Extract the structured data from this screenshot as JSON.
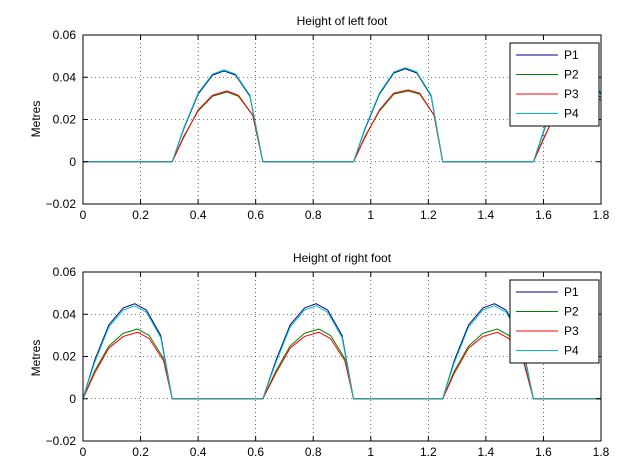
{
  "chart_data": [
    {
      "type": "line",
      "title": "Height of left foot",
      "xlabel": "",
      "ylabel": "Metres",
      "xlim": [
        0,
        1.8
      ],
      "ylim": [
        -0.02,
        0.06
      ],
      "xticks": [
        "0",
        "0.2",
        "0.4",
        "0.6",
        "0.8",
        "1",
        "1.2",
        "1.4",
        "1.6",
        "1.8"
      ],
      "yticks": [
        "−0.02",
        "0",
        "0.02",
        "0.04",
        "0.06"
      ],
      "grid": true,
      "legend": "top-right",
      "series": [
        {
          "name": "P1",
          "color": "#00008b",
          "x": [
            0,
            0.31,
            0.35,
            0.4,
            0.45,
            0.49,
            0.53,
            0.58,
            0.625,
            0.94,
            0.98,
            1.03,
            1.08,
            1.12,
            1.16,
            1.21,
            1.25,
            1.565,
            1.6,
            1.65,
            1.7,
            1.75,
            1.8
          ],
          "y": [
            0,
            0,
            0.0155,
            0.032,
            0.041,
            0.043,
            0.041,
            0.031,
            0,
            0,
            0.0155,
            0.032,
            0.042,
            0.044,
            0.042,
            0.031,
            0,
            0,
            0.014,
            0.033,
            0.042,
            0.042,
            0.032
          ]
        },
        {
          "name": "P2",
          "color": "#008000",
          "x": [
            0,
            0.31,
            0.35,
            0.4,
            0.45,
            0.5,
            0.54,
            0.59,
            0.625,
            0.94,
            0.98,
            1.03,
            1.08,
            1.13,
            1.17,
            1.22,
            1.25,
            1.565,
            1.6,
            1.65,
            1.7,
            1.75,
            1.8
          ],
          "y": [
            0,
            0,
            0.012,
            0.024,
            0.031,
            0.033,
            0.031,
            0.022,
            0,
            0,
            0.012,
            0.024,
            0.032,
            0.0335,
            0.032,
            0.022,
            0,
            0,
            0.011,
            0.025,
            0.033,
            0.034,
            0.029
          ]
        },
        {
          "name": "P3",
          "color": "#ff0000",
          "x": [
            0,
            0.31,
            0.35,
            0.4,
            0.45,
            0.5,
            0.54,
            0.59,
            0.625,
            0.94,
            0.98,
            1.03,
            1.08,
            1.13,
            1.17,
            1.22,
            1.25,
            1.565,
            1.6,
            1.65,
            1.7,
            1.75,
            1.8
          ],
          "y": [
            0,
            0,
            0.0115,
            0.0245,
            0.0315,
            0.0335,
            0.0315,
            0.022,
            0,
            0,
            0.0115,
            0.0245,
            0.0325,
            0.034,
            0.0325,
            0.022,
            0,
            0,
            0.0105,
            0.0255,
            0.0335,
            0.0345,
            0.0305
          ]
        },
        {
          "name": "P4",
          "color": "#00bfbf",
          "x": [
            0,
            0.31,
            0.35,
            0.4,
            0.45,
            0.49,
            0.53,
            0.58,
            0.625,
            0.94,
            0.98,
            1.03,
            1.08,
            1.12,
            1.16,
            1.21,
            1.25,
            1.565,
            1.6,
            1.65,
            1.7,
            1.75,
            1.8
          ],
          "y": [
            0,
            0,
            0.016,
            0.0325,
            0.0415,
            0.0435,
            0.0415,
            0.0315,
            0,
            0,
            0.016,
            0.0325,
            0.0425,
            0.0445,
            0.0425,
            0.0315,
            0,
            0,
            0.0145,
            0.0335,
            0.0425,
            0.0425,
            0.0325
          ]
        }
      ]
    },
    {
      "type": "line",
      "title": "Height of right foot",
      "xlabel": "",
      "ylabel": "Metres",
      "xlim": [
        0,
        1.8
      ],
      "ylim": [
        -0.02,
        0.06
      ],
      "xticks": [
        "0",
        "0.2",
        "0.4",
        "0.6",
        "0.8",
        "1",
        "1.2",
        "1.4",
        "1.6",
        "1.8"
      ],
      "yticks": [
        "−0.02",
        "0",
        "0.02",
        "0.04",
        "0.06"
      ],
      "grid": true,
      "legend": "top-right",
      "series": [
        {
          "name": "P1",
          "color": "#00008b",
          "x": [
            0,
            0.04,
            0.09,
            0.14,
            0.18,
            0.22,
            0.27,
            0.31,
            0.625,
            0.67,
            0.72,
            0.77,
            0.81,
            0.85,
            0.9,
            0.94,
            1.25,
            1.29,
            1.34,
            1.39,
            1.43,
            1.47,
            1.52,
            1.565,
            1.8
          ],
          "y": [
            0,
            0.018,
            0.035,
            0.043,
            0.045,
            0.042,
            0.03,
            0,
            0,
            0.018,
            0.035,
            0.043,
            0.045,
            0.042,
            0.03,
            0,
            0,
            0.018,
            0.035,
            0.043,
            0.045,
            0.042,
            0.03,
            0,
            0
          ]
        },
        {
          "name": "P2",
          "color": "#008000",
          "x": [
            0,
            0.04,
            0.09,
            0.14,
            0.19,
            0.23,
            0.28,
            0.31,
            0.625,
            0.67,
            0.72,
            0.77,
            0.82,
            0.86,
            0.91,
            0.94,
            1.25,
            1.29,
            1.34,
            1.39,
            1.44,
            1.48,
            1.53,
            1.565,
            1.8
          ],
          "y": [
            0,
            0.013,
            0.025,
            0.031,
            0.033,
            0.03,
            0.019,
            0,
            0,
            0.013,
            0.025,
            0.031,
            0.033,
            0.03,
            0.019,
            0,
            0,
            0.013,
            0.025,
            0.031,
            0.033,
            0.03,
            0.019,
            0,
            0
          ]
        },
        {
          "name": "P3",
          "color": "#ff0000",
          "x": [
            0,
            0.04,
            0.09,
            0.14,
            0.19,
            0.23,
            0.28,
            0.31,
            0.625,
            0.67,
            0.72,
            0.77,
            0.82,
            0.86,
            0.91,
            0.94,
            1.25,
            1.29,
            1.34,
            1.39,
            1.44,
            1.48,
            1.53,
            1.565,
            1.8
          ],
          "y": [
            0,
            0.012,
            0.024,
            0.0295,
            0.0315,
            0.0285,
            0.018,
            0,
            0,
            0.012,
            0.024,
            0.0295,
            0.0315,
            0.0285,
            0.018,
            0,
            0,
            0.012,
            0.024,
            0.0295,
            0.0315,
            0.0285,
            0.018,
            0,
            0
          ]
        },
        {
          "name": "P4",
          "color": "#00bfbf",
          "x": [
            0,
            0.04,
            0.09,
            0.14,
            0.18,
            0.22,
            0.27,
            0.31,
            0.625,
            0.67,
            0.72,
            0.77,
            0.81,
            0.85,
            0.9,
            0.94,
            1.25,
            1.29,
            1.34,
            1.39,
            1.43,
            1.47,
            1.52,
            1.565,
            1.8
          ],
          "y": [
            0,
            0.017,
            0.034,
            0.042,
            0.044,
            0.041,
            0.029,
            0,
            0,
            0.017,
            0.034,
            0.042,
            0.044,
            0.041,
            0.029,
            0,
            0,
            0.017,
            0.034,
            0.042,
            0.044,
            0.041,
            0.029,
            0,
            0
          ]
        }
      ]
    }
  ]
}
